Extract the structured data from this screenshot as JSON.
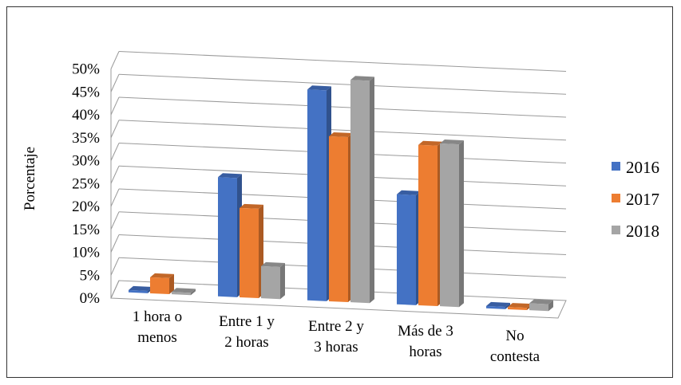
{
  "chart_data": {
    "type": "bar",
    "style": "3d-clustered-column",
    "title": "",
    "xlabel": "",
    "ylabel": "Porcentaje",
    "ylim": [
      0,
      50
    ],
    "yticks": [
      "0%",
      "5%",
      "10%",
      "15%",
      "20%",
      "25%",
      "30%",
      "35%",
      "40%",
      "45%",
      "50%"
    ],
    "categories": [
      [
        "1 hora o",
        "menos"
      ],
      [
        "Entre 1 y",
        "2 horas"
      ],
      [
        "Entre 2 y",
        "3 horas"
      ],
      [
        "Más de 3",
        "horas"
      ],
      [
        "No",
        "contesta"
      ]
    ],
    "series": [
      {
        "name": "2016",
        "color": "#4472C4",
        "values": [
          0.5,
          26,
          46,
          24,
          0.5
        ]
      },
      {
        "name": "2017",
        "color": "#ED7D31",
        "values": [
          3.5,
          19.5,
          36,
          35,
          0.5
        ]
      },
      {
        "name": "2018",
        "color": "#A5A5A5",
        "values": [
          0.5,
          7,
          48.5,
          35.5,
          1.5
        ]
      }
    ],
    "grid": true,
    "legend": "right"
  }
}
